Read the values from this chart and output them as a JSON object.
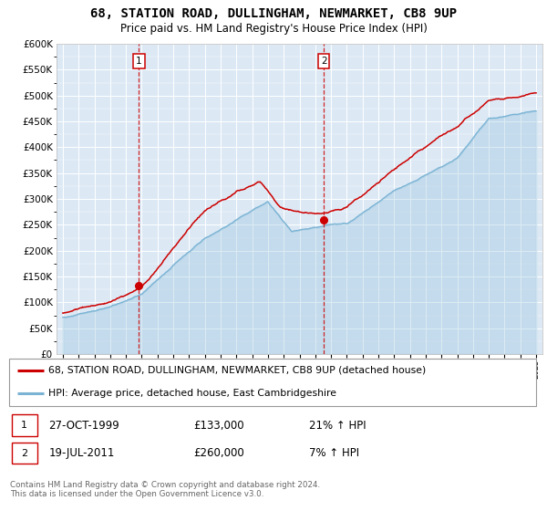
{
  "title1": "68, STATION ROAD, DULLINGHAM, NEWMARKET, CB8 9UP",
  "title2": "Price paid vs. HM Land Registry's House Price Index (HPI)",
  "legend_line1": "68, STATION ROAD, DULLINGHAM, NEWMARKET, CB8 9UP (detached house)",
  "legend_line2": "HPI: Average price, detached house, East Cambridgeshire",
  "sale1_date": "27-OCT-1999",
  "sale1_price": "£133,000",
  "sale1_hpi": "21% ↑ HPI",
  "sale1_year": 1999.82,
  "sale1_value": 133000,
  "sale2_date": "19-JUL-2011",
  "sale2_price": "£260,000",
  "sale2_hpi": "7% ↑ HPI",
  "sale2_year": 2011.54,
  "sale2_value": 260000,
  "footer": "Contains HM Land Registry data © Crown copyright and database right 2024.\nThis data is licensed under the Open Government Licence v3.0.",
  "hpi_color": "#7ab3d4",
  "price_color": "#cc0000",
  "plot_bg_color": "#dce9f5",
  "ylim": [
    0,
    600000
  ],
  "xlim_start": 1994.6,
  "xlim_end": 2025.4
}
